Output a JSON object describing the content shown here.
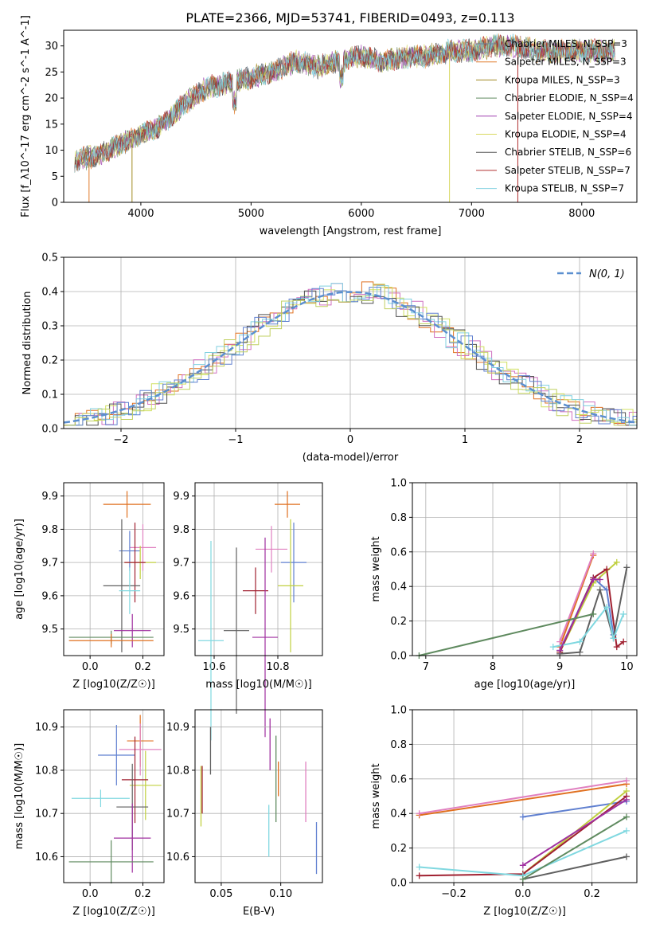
{
  "title": "PLATE=2366, MJD=53741, FIBERID=0493, z=0.113",
  "colors": {
    "spectrum": [
      "#6b7f94",
      "#e07a2a",
      "#a08a20",
      "#5f8a5f",
      "#a040b0",
      "#d8d860",
      "#555555",
      "#b03030",
      "#80d0e0"
    ],
    "hist": [
      "#e07020",
      "#d070c0",
      "#d0e060",
      "#505050",
      "#80d0e0",
      "#6080d0",
      "#c0d060"
    ],
    "gauss": "#5b8fd0",
    "mass_weight": [
      "#e07020",
      "#e080c0",
      "#6080d0",
      "#c0d040",
      "#a02030",
      "#606060",
      "#80d8e0",
      "#a030a0",
      "#5f8a5f"
    ]
  },
  "chart_data": [
    {
      "type": "line",
      "xlabel": "wavelength [Angstrom, rest frame]",
      "ylabel": "Flux [f_λ10^-17 erg cm^-2 s^-1 A^-1]",
      "xlim": [
        3300,
        8500
      ],
      "ylim": [
        0,
        33
      ],
      "xticks": [
        "4000",
        "5000",
        "6000",
        "7000",
        "8000"
      ],
      "yticks": [
        "0",
        "5",
        "10",
        "15",
        "20",
        "25",
        "30"
      ],
      "grid": false,
      "legend": "top-right",
      "series": [
        {
          "name": "Chabrier MILES, N_SSP=3"
        },
        {
          "name": "Salpeter MILES, N_SSP=3"
        },
        {
          "name": "Kroupa MILES, N_SSP=3"
        },
        {
          "name": "Chabrier ELODIE, N_SSP=4"
        },
        {
          "name": "Salpeter ELODIE, N_SSP=4"
        },
        {
          "name": "Kroupa ELODIE, N_SSP=4"
        },
        {
          "name": "Chabrier STELIB, N_SSP=6"
        },
        {
          "name": "Salpeter STELIB, N_SSP=7"
        },
        {
          "name": "Kroupa STELIB, N_SSP=7"
        }
      ],
      "envelope": {
        "x": [
          3400,
          3600,
          3800,
          4000,
          4200,
          4400,
          4600,
          4800,
          5000,
          5200,
          5400,
          5600,
          5800,
          6000,
          6200,
          6400,
          6600,
          6800,
          7000,
          7200,
          7400,
          7600,
          7800,
          8000,
          8300
        ],
        "y": [
          8,
          9,
          11,
          13,
          15,
          19,
          22,
          23,
          24,
          25,
          27,
          26,
          27,
          28,
          27,
          28,
          28,
          29,
          29,
          30,
          30,
          29,
          29,
          29,
          29
        ]
      }
    },
    {
      "type": "area",
      "xlabel": "(data-model)/error",
      "ylabel": "Normed distribution",
      "xlim": [
        -2.5,
        2.5
      ],
      "ylim": [
        0,
        0.5
      ],
      "xticks": [
        "−2",
        "−1",
        "0",
        "1",
        "2"
      ],
      "yticks": [
        "0.0",
        "0.1",
        "0.2",
        "0.3",
        "0.4",
        "0.5"
      ],
      "grid": true,
      "legend": "top-right",
      "legend_label": "N(0, 1)"
    },
    {
      "type": "scatter",
      "xlabel": "Z [log10(Z/Z☉)]",
      "ylabel": "age  [log10(age/yr)]",
      "xlim": [
        -0.1,
        0.28
      ],
      "ylim": [
        9.42,
        9.94
      ],
      "xticks": [
        "0.0",
        "0.2"
      ],
      "yticks": [
        "9.5",
        "9.6",
        "9.7",
        "9.8",
        "9.9"
      ],
      "points": [
        {
          "x": 0.14,
          "y": 9.875,
          "xe": 0.09,
          "ye": 0.04
        },
        {
          "x": 0.2,
          "y": 9.745,
          "xe": 0.05,
          "ye": 0.07
        },
        {
          "x": 0.15,
          "y": 9.735,
          "xe": 0.04,
          "ye": 0.06
        },
        {
          "x": 0.19,
          "y": 9.7,
          "xe": 0.06,
          "ye": 0.05
        },
        {
          "x": 0.17,
          "y": 9.7,
          "xe": 0.04,
          "ye": 0.12
        },
        {
          "x": 0.12,
          "y": 9.63,
          "xe": 0.07,
          "ye": 0.2
        },
        {
          "x": 0.15,
          "y": 9.615,
          "xe": 0.04,
          "ye": 0.07
        },
        {
          "x": 0.16,
          "y": 9.495,
          "xe": 0.07,
          "ye": 0.05
        },
        {
          "x": 0.08,
          "y": 9.475,
          "xe": 0.16,
          "ye": 0.02
        },
        {
          "x": 0.08,
          "y": 9.465,
          "xe": 0.16,
          "ye": 0.02
        }
      ]
    },
    {
      "type": "scatter",
      "xlabel": "mass [log10(M/M☉)]",
      "ylabel": "",
      "xlim": [
        10.54,
        10.94
      ],
      "ylim": [
        9.42,
        9.94
      ],
      "xticks": [
        "10.6",
        "10.8"
      ],
      "yticks": [
        "9.5",
        "9.6",
        "9.7",
        "9.8",
        "9.9"
      ],
      "points": [
        {
          "x": 10.83,
          "y": 9.875,
          "xe": 0.04,
          "ye": 0.04
        },
        {
          "x": 10.78,
          "y": 9.74,
          "xe": 0.05,
          "ye": 0.07
        },
        {
          "x": 10.85,
          "y": 9.7,
          "xe": 0.04,
          "ye": 0.12
        },
        {
          "x": 10.84,
          "y": 9.63,
          "xe": 0.04,
          "ye": 0.2
        },
        {
          "x": 10.73,
          "y": 9.615,
          "xe": 0.04,
          "ye": 0.07
        },
        {
          "x": 10.67,
          "y": 9.495,
          "xe": 0.04,
          "ye": 0.25
        },
        {
          "x": 10.59,
          "y": 9.465,
          "xe": 0.04,
          "ye": 0.3
        },
        {
          "x": 10.76,
          "y": 9.475,
          "xe": 0.04,
          "ye": 0.3
        }
      ]
    },
    {
      "type": "line",
      "xlabel": "age  [log10(age/yr)]",
      "ylabel": "mass weight",
      "xlim": [
        6.8,
        10.15
      ],
      "ylim": [
        0,
        1.0
      ],
      "xticks": [
        "7",
        "8",
        "9",
        "10"
      ],
      "yticks": [
        "0.0",
        "0.2",
        "0.4",
        "0.6",
        "0.8",
        "1.0"
      ],
      "series": [
        {
          "x": [
            9.0,
            9.5
          ],
          "y": [
            0.05,
            0.58
          ]
        },
        {
          "x": [
            9.0,
            9.5
          ],
          "y": [
            0.08,
            0.59
          ]
        },
        {
          "x": [
            9.0,
            9.5,
            9.7,
            9.8
          ],
          "y": [
            0.03,
            0.45,
            0.38,
            0.12
          ]
        },
        {
          "x": [
            9.0,
            9.5,
            9.85
          ],
          "y": [
            0.02,
            0.42,
            0.54
          ]
        },
        {
          "x": [
            9.0,
            9.5,
            9.7,
            9.85,
            9.95
          ],
          "y": [
            0.02,
            0.45,
            0.5,
            0.05,
            0.08
          ]
        },
        {
          "x": [
            9.0,
            9.3,
            9.6,
            9.8,
            10.0
          ],
          "y": [
            0.01,
            0.02,
            0.38,
            0.1,
            0.51
          ]
        },
        {
          "x": [
            8.9,
            9.3,
            9.7,
            9.8,
            9.95
          ],
          "y": [
            0.05,
            0.08,
            0.28,
            0.1,
            0.24
          ]
        },
        {
          "x": [
            9.0,
            9.5,
            9.6
          ],
          "y": [
            0.03,
            0.44,
            0.44
          ]
        },
        {
          "x": [
            6.9,
            9.5
          ],
          "y": [
            0.0,
            0.24
          ]
        }
      ]
    },
    {
      "type": "scatter",
      "xlabel": "Z [log10(Z/Z☉)]",
      "ylabel": "mass [log10(M/M☉)]",
      "xlim": [
        -0.1,
        0.28
      ],
      "ylim": [
        10.54,
        10.94
      ],
      "xticks": [
        "0.0",
        "0.2"
      ],
      "yticks": [
        "10.6",
        "10.7",
        "10.8",
        "10.9"
      ],
      "points": [
        {
          "x": 0.19,
          "y": 10.868,
          "xe": 0.05,
          "ye": 0.06
        },
        {
          "x": 0.19,
          "y": 10.848,
          "xe": 0.08,
          "ye": 0.06
        },
        {
          "x": 0.1,
          "y": 10.835,
          "xe": 0.07,
          "ye": 0.07
        },
        {
          "x": 0.21,
          "y": 10.765,
          "xe": 0.06,
          "ye": 0.08
        },
        {
          "x": 0.17,
          "y": 10.778,
          "xe": 0.05,
          "ye": 0.1
        },
        {
          "x": 0.16,
          "y": 10.715,
          "xe": 0.06,
          "ye": 0.1
        },
        {
          "x": 0.04,
          "y": 10.735,
          "xe": 0.11,
          "ye": 0.02
        },
        {
          "x": 0.16,
          "y": 10.643,
          "xe": 0.07,
          "ye": 0.08
        },
        {
          "x": 0.08,
          "y": 10.588,
          "xe": 0.16,
          "ye": 0.05
        }
      ]
    },
    {
      "type": "scatter",
      "xlabel": "E(B-V)",
      "ylabel": "",
      "xlim": [
        0.028,
        0.135
      ],
      "ylim": [
        10.54,
        10.94
      ],
      "xticks": [
        "0.05",
        "0.10"
      ],
      "yticks": [
        "10.6",
        "10.7",
        "10.8",
        "10.9"
      ],
      "bars": [
        {
          "x": 0.033,
          "y0": 10.67,
          "y1": 10.81
        },
        {
          "x": 0.034,
          "y0": 10.7,
          "y1": 10.81
        },
        {
          "x": 0.041,
          "y0": 10.79,
          "y1": 10.9
        },
        {
          "x": 0.09,
          "y0": 10.6,
          "y1": 10.72
        },
        {
          "x": 0.091,
          "y0": 10.8,
          "y1": 10.92
        },
        {
          "x": 0.096,
          "y0": 10.68,
          "y1": 10.88
        },
        {
          "x": 0.098,
          "y0": 10.74,
          "y1": 10.82
        },
        {
          "x": 0.121,
          "y0": 10.68,
          "y1": 10.82
        },
        {
          "x": 0.13,
          "y0": 10.56,
          "y1": 10.68
        }
      ]
    },
    {
      "type": "line",
      "xlabel": "Z [log10(Z/Z☉)]",
      "ylabel": "mass weight",
      "xlim": [
        -0.32,
        0.33
      ],
      "ylim": [
        0,
        1.0
      ],
      "xticks": [
        "−0.2",
        "0.0",
        "0.2"
      ],
      "yticks": [
        "0.0",
        "0.2",
        "0.4",
        "0.6",
        "0.8",
        "1.0"
      ],
      "series": [
        {
          "x": [
            -0.3,
            0.3
          ],
          "y": [
            0.39,
            0.57
          ]
        },
        {
          "x": [
            -0.3,
            0.3
          ],
          "y": [
            0.4,
            0.59
          ]
        },
        {
          "x": [
            0.0,
            0.3
          ],
          "y": [
            0.38,
            0.47
          ]
        },
        {
          "x": [
            0.0,
            0.3
          ],
          "y": [
            0.05,
            0.53
          ]
        },
        {
          "x": [
            -0.3,
            0.0,
            0.3
          ],
          "y": [
            0.04,
            0.05,
            0.5
          ]
        },
        {
          "x": [
            0.0,
            0.3
          ],
          "y": [
            0.02,
            0.15
          ]
        },
        {
          "x": [
            -0.3,
            0.0,
            0.3
          ],
          "y": [
            0.09,
            0.04,
            0.3
          ]
        },
        {
          "x": [
            0.0,
            0.3
          ],
          "y": [
            0.1,
            0.48
          ]
        },
        {
          "x": [
            0.0,
            0.3
          ],
          "y": [
            0.02,
            0.38
          ]
        }
      ]
    }
  ]
}
